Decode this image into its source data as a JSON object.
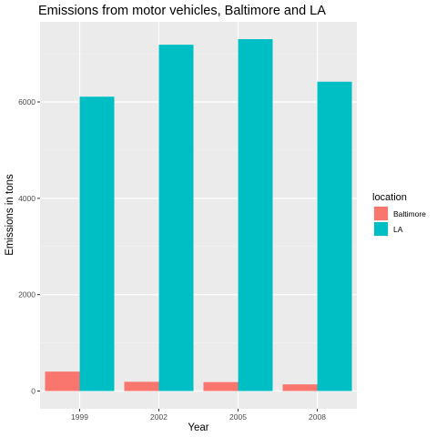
{
  "chart_data": {
    "type": "bar",
    "title": "Emissions from motor vehicles, Baltimore and LA",
    "xlabel": "Year",
    "ylabel": "Emissions in tons",
    "categories": [
      "1999",
      "2002",
      "2005",
      "2008"
    ],
    "series": [
      {
        "name": "Baltimore",
        "color": "#F8766D",
        "values": [
          403.8,
          192.0,
          185.4,
          138.2
        ]
      },
      {
        "name": "LA",
        "color": "#00BFC4",
        "values": [
          6109.7,
          7188.7,
          7304.1,
          6421.0
        ]
      }
    ],
    "ylim": [
      0,
      7684
    ],
    "yticks": [
      0,
      2000,
      4000,
      6000
    ],
    "grid": true,
    "legend": {
      "title": "location",
      "position": "right"
    }
  }
}
